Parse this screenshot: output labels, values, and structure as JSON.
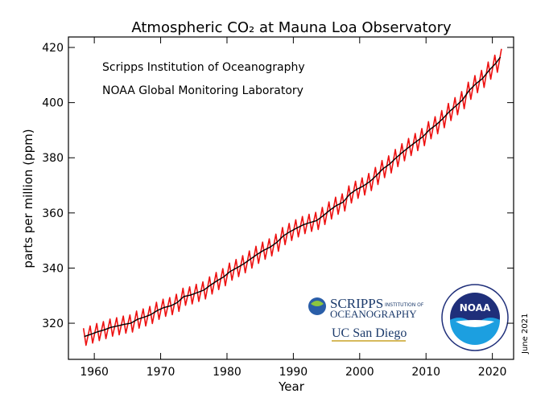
{
  "chart_data": {
    "type": "line",
    "title": "Atmospheric CO₂ at Mauna Loa Observatory",
    "x_label": "Year",
    "y_label": "parts per million (ppm)",
    "annotations": [
      "Scripps Institution of Oceanography",
      "NOAA Global Monitoring Laboratory",
      "June 2021"
    ],
    "logos": {
      "scripps": [
        "SCRIPPS",
        "INSTITUTION OF",
        "OCEANOGRAPHY",
        "UC San Diego"
      ],
      "noaa": "NOAA"
    },
    "xlim": [
      1956.1,
      2023.2
    ],
    "ylim": [
      306.9,
      423.8
    ],
    "xticks": [
      1960,
      1970,
      1980,
      1990,
      2000,
      2010,
      2020
    ],
    "yticks": [
      320,
      340,
      360,
      380,
      400,
      420
    ],
    "series": [
      {
        "color": "#ee1111",
        "x": [
          1958.37,
          1958.75,
          1959.37,
          1959.75,
          1960.37,
          1960.75,
          1961.37,
          1961.75,
          1962.37,
          1962.75,
          1963.37,
          1963.75,
          1964.37,
          1964.75,
          1965.37,
          1965.75,
          1966.37,
          1966.75,
          1967.37,
          1967.75,
          1968.37,
          1968.75,
          1969.37,
          1969.75,
          1970.37,
          1970.75,
          1971.37,
          1971.75,
          1972.37,
          1972.75,
          1973.37,
          1973.75,
          1974.37,
          1974.75,
          1975.37,
          1975.75,
          1976.37,
          1976.75,
          1977.37,
          1977.75,
          1978.37,
          1978.75,
          1979.37,
          1979.75,
          1980.37,
          1980.75,
          1981.37,
          1981.75,
          1982.37,
          1982.75,
          1983.37,
          1983.75,
          1984.37,
          1984.75,
          1985.37,
          1985.75,
          1986.37,
          1986.75,
          1987.37,
          1987.75,
          1988.37,
          1988.75,
          1989.37,
          1989.75,
          1990.37,
          1990.75,
          1991.37,
          1991.75,
          1992.37,
          1992.75,
          1993.37,
          1993.75,
          1994.37,
          1994.75,
          1995.37,
          1995.75,
          1996.37,
          1996.75,
          1997.37,
          1997.75,
          1998.37,
          1998.75,
          1999.37,
          1999.75,
          2000.37,
          2000.75,
          2001.37,
          2001.75,
          2002.37,
          2002.75,
          2003.37,
          2003.75,
          2004.37,
          2004.75,
          2005.37,
          2005.75,
          2006.37,
          2006.75,
          2007.37,
          2007.75,
          2008.37,
          2008.75,
          2009.37,
          2009.75,
          2010.37,
          2010.75,
          2011.37,
          2011.75,
          2012.37,
          2012.75,
          2013.37,
          2013.75,
          2014.37,
          2014.75,
          2015.37,
          2015.75,
          2016.37,
          2016.75,
          2017.37,
          2017.75,
          2018.37,
          2018.75,
          2019.37,
          2019.75,
          2020.37,
          2020.75,
          2021.37
        ],
        "values": [
          318.2,
          312.0,
          319.0,
          312.8,
          319.9,
          313.7,
          320.6,
          314.4,
          321.5,
          315.3,
          322.0,
          315.8,
          322.6,
          316.4,
          323.0,
          316.8,
          324.4,
          318.2,
          325.2,
          319.0,
          326.1,
          319.9,
          327.6,
          321.4,
          328.7,
          322.5,
          329.3,
          323.1,
          330.5,
          324.3,
          332.7,
          326.5,
          333.2,
          327.0,
          334.1,
          327.9,
          335.0,
          328.8,
          336.8,
          330.6,
          338.4,
          332.2,
          339.8,
          333.6,
          341.8,
          335.6,
          343.1,
          336.9,
          344.5,
          338.3,
          346.2,
          340.0,
          347.9,
          341.7,
          349.4,
          343.2,
          350.6,
          344.4,
          352.3,
          346.1,
          354.7,
          348.5,
          356.2,
          350.0,
          357.5,
          351.3,
          358.7,
          352.5,
          359.5,
          353.3,
          360.2,
          354.0,
          362.0,
          355.8,
          364.0,
          357.8,
          365.7,
          359.5,
          366.9,
          360.7,
          369.8,
          363.6,
          371.5,
          365.3,
          372.7,
          366.5,
          374.3,
          368.1,
          376.5,
          370.3,
          379.0,
          372.8,
          380.7,
          374.5,
          383.0,
          376.8,
          385.1,
          378.9,
          387.0,
          380.8,
          388.8,
          382.6,
          390.6,
          384.4,
          393.1,
          386.9,
          394.9,
          388.7,
          397.1,
          390.9,
          399.7,
          393.5,
          401.8,
          395.6,
          404.0,
          397.8,
          407.4,
          401.2,
          409.8,
          403.6,
          411.7,
          405.5,
          414.7,
          408.5,
          417.2,
          411.0,
          419.5
        ]
      },
      {
        "color": "#000000",
        "x": [
          1958.5,
          1959.5,
          1960.5,
          1961.5,
          1962.5,
          1963.5,
          1964.5,
          1965.5,
          1966.5,
          1967.5,
          1968.5,
          1969.5,
          1970.5,
          1971.5,
          1972.5,
          1973.5,
          1974.5,
          1975.5,
          1976.5,
          1977.5,
          1978.5,
          1979.5,
          1980.5,
          1981.5,
          1982.5,
          1983.5,
          1984.5,
          1985.5,
          1986.5,
          1987.5,
          1988.5,
          1989.5,
          1990.5,
          1991.5,
          1992.5,
          1993.5,
          1994.5,
          1995.5,
          1996.5,
          1997.5,
          1998.5,
          1999.5,
          2000.5,
          2001.5,
          2002.5,
          2003.5,
          2004.5,
          2005.5,
          2006.5,
          2007.5,
          2008.5,
          2009.5,
          2010.5,
          2011.5,
          2012.5,
          2013.5,
          2014.5,
          2015.5,
          2016.5,
          2017.5,
          2018.5,
          2019.5,
          2020.5,
          2021.2
        ],
        "values": [
          315.2,
          316.0,
          316.9,
          317.6,
          318.5,
          319.0,
          319.6,
          320.0,
          321.4,
          322.2,
          323.1,
          324.6,
          325.7,
          326.3,
          327.5,
          329.7,
          330.2,
          331.1,
          332.0,
          333.8,
          335.4,
          336.8,
          338.8,
          340.1,
          341.5,
          343.2,
          344.9,
          346.4,
          347.6,
          349.3,
          351.7,
          353.2,
          354.5,
          355.7,
          356.5,
          357.2,
          359.0,
          361.0,
          362.7,
          363.9,
          366.8,
          368.5,
          369.7,
          371.3,
          373.5,
          376.0,
          377.7,
          380.0,
          382.1,
          384.0,
          385.8,
          387.6,
          390.1,
          391.9,
          394.1,
          396.7,
          398.8,
          401.0,
          404.4,
          406.8,
          408.7,
          411.7,
          414.2,
          416.5
        ]
      }
    ]
  }
}
